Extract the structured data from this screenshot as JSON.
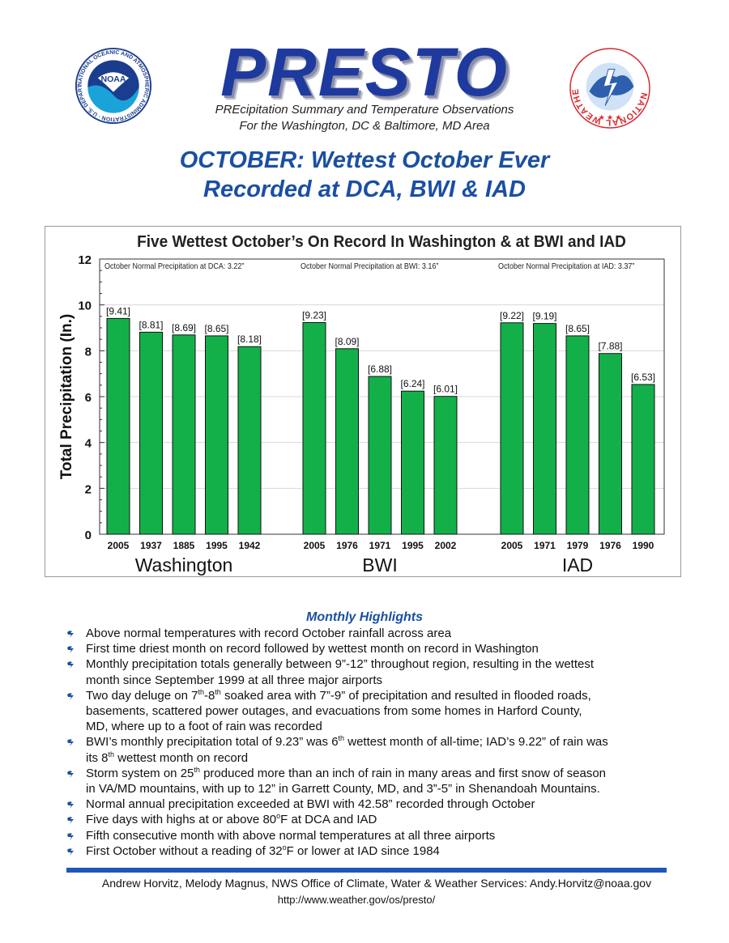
{
  "header": {
    "brand": "PRESTO",
    "subtitle_line1": "PREcipitation Summary and Temperature Observations",
    "subtitle_line2": "For the Washington, DC & Baltimore, MD Area",
    "noaa_logo_text": "NOAA",
    "noaa_ring_text": "NATIONAL OCEANIC AND ATMOSPHERIC ADMINISTRATION · U.S. DEPARTMENT OF COMMERCE",
    "nws_ring_text": "NATIONAL WEATHER SERVICE"
  },
  "headline": {
    "line1": "OCTOBER: Wettest October Ever",
    "line2": "Recorded at DCA, BWI & IAD"
  },
  "colors": {
    "accent_blue": "#1a4fa3",
    "bar_green": "#13b04a",
    "rule_blue": "#1f57b8"
  },
  "chart_data": {
    "type": "bar",
    "title": "Five Wettest October’s On Record In Washington & at BWI and IAD",
    "ylabel": "Total Precipitation (In.)",
    "ylim": [
      0,
      12
    ],
    "yticks": [
      "0",
      "2",
      "4",
      "6",
      "8",
      "10",
      "12"
    ],
    "grid": true,
    "groups": [
      {
        "name": "Washington",
        "normal_note": "October Normal Precipitation at DCA: 3.22”",
        "categories": [
          "2005",
          "1937",
          "1885",
          "1995",
          "1942"
        ],
        "values": [
          9.41,
          8.81,
          8.69,
          8.65,
          8.18
        ],
        "labels": [
          "[9.41]",
          "[8.81]",
          "[8.69]",
          "[8.65]",
          "[8.18]"
        ]
      },
      {
        "name": "BWI",
        "normal_note": "October Normal Precipitation at BWI: 3.16”",
        "categories": [
          "2005",
          "1976",
          "1971",
          "1995",
          "2002"
        ],
        "values": [
          9.23,
          8.09,
          6.88,
          6.24,
          6.01
        ],
        "labels": [
          "[9.23]",
          "[8.09]",
          "[6.88]",
          "[6.24]",
          "[6.01]"
        ]
      },
      {
        "name": "IAD",
        "normal_note": "October Normal Precipitation at IAD: 3.37”",
        "categories": [
          "2005",
          "1971",
          "1979",
          "1976",
          "1990"
        ],
        "values": [
          9.22,
          9.19,
          8.65,
          7.88,
          6.53
        ],
        "labels": [
          "[9.22]",
          "[9.19]",
          "[8.65]",
          "[7.88]",
          "[6.53]"
        ]
      }
    ]
  },
  "highlights": {
    "title": "Monthly Highlights",
    "items": [
      [
        "Above normal temperatures with record October rainfall across area"
      ],
      [
        "First time driest month on record followed by wettest month on record in Washington"
      ],
      [
        "Monthly precipitation totals generally between 9”-12” throughout region, resulting in the wettest",
        "month since September 1999 at all three major airports"
      ],
      [
        "Two day deluge on 7th-8th soaked area with 7”-9” of precipitation and resulted in flooded roads,",
        "basements, scattered power outages, and evacuations from some homes in Harford County,",
        "MD, where up to a foot of rain was recorded"
      ],
      [
        "BWI’s monthly precipitation total of 9.23” was 6th wettest month of all-time; IAD’s 9.22” of rain was",
        "its 8th wettest month on record"
      ],
      [
        "Storm system on 25th produced more than an inch of rain in many areas and first snow of season",
        "in VA/MD mountains, with up to 12” in Garrett County, MD, and 3”-5” in Shenandoah Mountains."
      ],
      [
        "Normal annual precipitation exceeded at BWI with 42.58” recorded through October"
      ],
      [
        "Five days with highs at or above 80oF at DCA and IAD"
      ],
      [
        "Fifth consecutive month with above normal temperatures at all three airports"
      ],
      [
        "First October without a reading of 32oF or lower at IAD since 1984"
      ]
    ]
  },
  "footer": {
    "credits": "Andrew Horvitz, Melody Magnus, NWS Office of Climate, Water & Weather Services: Andy.Horvitz@noaa.gov",
    "url": "http://www.weather.gov/os/presto/"
  }
}
